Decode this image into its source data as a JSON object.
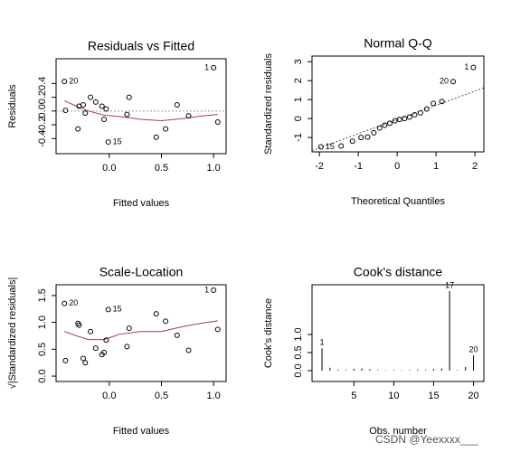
{
  "chart_data": [
    {
      "type": "scatter",
      "title": "Residuals vs Fitted",
      "xlabel": "Fitted values",
      "ylabel": "Residuals",
      "x": [
        -0.43,
        -0.42,
        -0.3,
        -0.29,
        -0.25,
        -0.23,
        -0.18,
        -0.13,
        -0.07,
        -0.05,
        -0.03,
        -0.01,
        0.17,
        0.19,
        0.45,
        0.54,
        0.65,
        0.76,
        1.0,
        1.04
      ],
      "y": [
        0.43,
        0.01,
        -0.26,
        0.07,
        0.09,
        -0.03,
        0.2,
        0.13,
        0.07,
        -0.12,
        0.03,
        -0.45,
        -0.05,
        0.2,
        -0.38,
        -0.26,
        0.09,
        -0.07,
        0.63,
        -0.16
      ],
      "point_labels": [
        "20",
        null,
        null,
        null,
        null,
        null,
        null,
        null,
        null,
        null,
        null,
        "15",
        null,
        null,
        null,
        null,
        null,
        null,
        "1",
        null
      ],
      "xlim": [
        -0.51,
        1.12
      ],
      "xticks": [
        {
          "value": 0,
          "label": "0.0"
        },
        0.5,
        {
          "value": 1,
          "label": "1.0"
        }
      ],
      "ylim": [
        -0.62,
        0.76
      ],
      "yticks": [
        -0.4,
        -0.2,
        {
          "value": 0,
          "label": "0.0"
        },
        0.2,
        0.4
      ],
      "hline": 0,
      "smooth": {
        "x": [
          -0.43,
          -0.3,
          -0.2,
          -0.05,
          0.1,
          0.3,
          0.5,
          0.7,
          0.9,
          1.04
        ],
        "y": [
          0.15,
          0.06,
          0.0,
          -0.06,
          -0.08,
          -0.12,
          -0.14,
          -0.11,
          -0.07,
          -0.05
        ]
      },
      "color": "#000000",
      "smooth_color": "#a8385a"
    },
    {
      "type": "scatter",
      "title": "Normal Q-Q",
      "xlabel": "Theoretical Quantiles",
      "ylabel": "Standardized residuals",
      "x": [
        -1.96,
        -1.44,
        -1.15,
        -0.93,
        -0.76,
        -0.6,
        -0.45,
        -0.32,
        -0.19,
        -0.06,
        0.06,
        0.19,
        0.32,
        0.45,
        0.6,
        0.76,
        0.93,
        1.15,
        1.44,
        1.96
      ],
      "y": [
        -1.5,
        -1.45,
        -1.2,
        -1.0,
        -0.98,
        -0.75,
        -0.5,
        -0.35,
        -0.25,
        -0.12,
        -0.05,
        0.0,
        0.08,
        0.2,
        0.3,
        0.5,
        0.8,
        0.9,
        1.95,
        2.7
      ],
      "point_labels": [
        "15",
        null,
        null,
        null,
        null,
        null,
        null,
        null,
        null,
        null,
        null,
        null,
        null,
        null,
        null,
        null,
        null,
        null,
        "20",
        "1"
      ],
      "xlim": [
        -2.19,
        2.23
      ],
      "xticks": [
        -2,
        -1,
        0,
        1,
        2
      ],
      "ylim": [
        -1.76,
        3.3
      ],
      "yticks": [
        -1,
        0,
        1,
        2,
        3
      ],
      "refline": {
        "intercept": -0.05,
        "slope": 0.75
      },
      "color": "#000000"
    },
    {
      "type": "scatter",
      "title": "Scale-Location",
      "xlabel": "Fitted values",
      "ylabel": "√|Standardized residuals|",
      "x": [
        -0.43,
        -0.42,
        -0.3,
        -0.29,
        -0.25,
        -0.23,
        -0.18,
        -0.13,
        -0.07,
        -0.05,
        -0.03,
        -0.01,
        0.17,
        0.19,
        0.45,
        0.54,
        0.65,
        0.76,
        1.0,
        1.04
      ],
      "y": [
        1.35,
        0.29,
        0.98,
        0.95,
        0.33,
        0.25,
        0.83,
        0.52,
        0.4,
        0.44,
        0.67,
        1.24,
        0.55,
        0.89,
        1.16,
        1.02,
        0.76,
        0.48,
        1.6,
        0.87
      ],
      "point_labels": [
        "20",
        null,
        null,
        null,
        null,
        null,
        null,
        null,
        null,
        null,
        null,
        "15",
        null,
        null,
        null,
        null,
        null,
        null,
        "1",
        null
      ],
      "xlim": [
        -0.51,
        1.12
      ],
      "xticks": [
        {
          "value": 0,
          "label": "0.0"
        },
        0.5,
        {
          "value": 1,
          "label": "1.0"
        }
      ],
      "ylim": [
        -0.1,
        1.7
      ],
      "yticks": [
        {
          "value": 0,
          "label": "0.0"
        },
        0.5,
        {
          "value": 1,
          "label": "1.0"
        },
        1.5
      ],
      "smooth": {
        "x": [
          -0.43,
          -0.3,
          -0.2,
          -0.05,
          0.1,
          0.3,
          0.5,
          0.7,
          0.9,
          1.04
        ],
        "y": [
          0.83,
          0.74,
          0.68,
          0.68,
          0.78,
          0.83,
          0.83,
          0.92,
          0.99,
          1.03
        ]
      },
      "color": "#000000",
      "smooth_color": "#a8385a"
    },
    {
      "type": "bar",
      "title": "Cook's distance",
      "xlabel": "Obs. number",
      "ylabel": "Cook's distance",
      "x": [
        1,
        2,
        3,
        4,
        5,
        6,
        7,
        8,
        9,
        10,
        11,
        12,
        13,
        14,
        15,
        16,
        17,
        18,
        19,
        20
      ],
      "values": [
        0.62,
        0.08,
        0.03,
        0.02,
        0.05,
        0.06,
        0.04,
        0.02,
        0.01,
        0.02,
        0.01,
        0.02,
        0.03,
        0.02,
        0.04,
        0.06,
        2.2,
        0.02,
        0.1,
        0.42
      ],
      "point_labels": [
        "1",
        null,
        null,
        null,
        null,
        null,
        null,
        null,
        null,
        null,
        null,
        null,
        null,
        null,
        null,
        null,
        "17",
        null,
        null,
        "20"
      ],
      "xlim": [
        -0.25,
        21.3
      ],
      "xticks": [
        5,
        10,
        15,
        20
      ],
      "ylim": [
        -0.3,
        2.375
      ],
      "yticks": [
        {
          "value": 0,
          "label": "0.0"
        },
        0.5,
        {
          "value": 1,
          "label": "1.0"
        }
      ],
      "color": "#000000"
    }
  ],
  "watermark": "CSDN @Yeexxxx___"
}
